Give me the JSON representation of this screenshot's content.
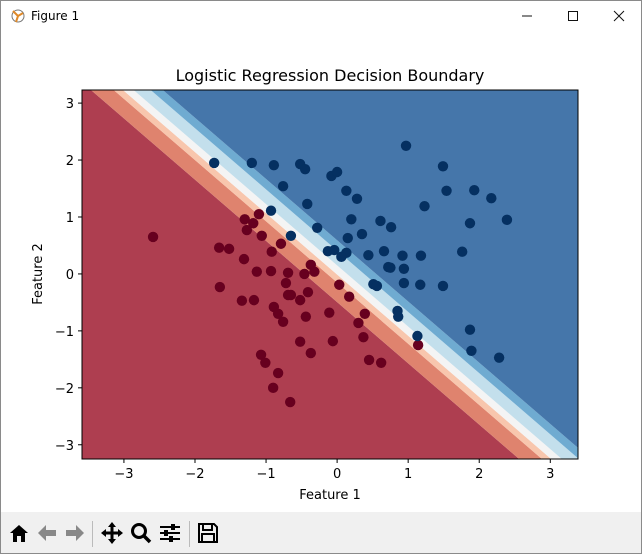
{
  "window": {
    "title": "Figure 1",
    "minimize_icon": "minimize-icon",
    "maximize_icon": "maximize-icon",
    "close_icon": "close-icon"
  },
  "toolbar": {
    "items": [
      "home-icon",
      "back-arrow-icon",
      "forward-arrow-icon",
      "pan-icon",
      "zoom-icon",
      "configure-subplots-icon",
      "save-icon"
    ]
  },
  "chart_data": {
    "type": "scatter",
    "title": "Logistic Regression Decision Boundary",
    "xlabel": "Feature 1",
    "ylabel": "Feature 2",
    "xlim": [
      -3.59,
      3.39
    ],
    "ylim": [
      -3.25,
      3.23
    ],
    "xticks": [
      "−3",
      "−2",
      "−1",
      "0",
      "1",
      "2",
      "3"
    ],
    "yticks": [
      "3",
      "2",
      "1",
      "0",
      "−1",
      "−2",
      "−3"
    ],
    "grid": false,
    "background": "filled contour of class probability (RdBu colormap)",
    "contour_colors": [
      "#ae3e50",
      "#df836e",
      "#f8c6ad",
      "#f4f4f4",
      "#c3dfec",
      "#6fabd1",
      "#4576aa"
    ],
    "series": [
      {
        "class": 0,
        "color": "#67001f",
        "points": [
          [
            -2.59,
            0.65
          ],
          [
            -1.1,
            1.05
          ],
          [
            -1.3,
            0.96
          ],
          [
            -1.18,
            0.89
          ],
          [
            -1.27,
            0.77
          ],
          [
            -1.06,
            0.67
          ],
          [
            -0.79,
            0.53
          ],
          [
            -1.66,
            0.46
          ],
          [
            -1.52,
            0.44
          ],
          [
            -1.31,
            0.26
          ],
          [
            -0.92,
            0.39
          ],
          [
            -1.13,
            0.04
          ],
          [
            -0.93,
            0.05
          ],
          [
            -0.69,
            0.02
          ],
          [
            -0.37,
            0.16
          ],
          [
            -0.32,
            0.04
          ],
          [
            -0.46,
            0.0
          ],
          [
            -0.72,
            -0.16
          ],
          [
            0.03,
            -0.19
          ],
          [
            0.17,
            -0.4
          ],
          [
            0.3,
            -0.86
          ],
          [
            -1.65,
            -0.23
          ],
          [
            -1.34,
            -0.47
          ],
          [
            -1.17,
            -0.46
          ],
          [
            -0.69,
            -0.37
          ],
          [
            -0.65,
            -0.37
          ],
          [
            -0.52,
            -0.46
          ],
          [
            -0.41,
            -0.32
          ],
          [
            -0.89,
            -0.58
          ],
          [
            -0.83,
            -0.7
          ],
          [
            -0.76,
            -0.84
          ],
          [
            -0.44,
            -0.75
          ],
          [
            -0.11,
            -0.68
          ],
          [
            0.39,
            -0.7
          ],
          [
            -0.52,
            -1.19
          ],
          [
            -0.37,
            -1.39
          ],
          [
            -0.06,
            -1.18
          ],
          [
            0.37,
            -1.11
          ],
          [
            -1.07,
            -1.42
          ],
          [
            -1.01,
            -1.56
          ],
          [
            -0.83,
            -1.74
          ],
          [
            -0.9,
            -2.0
          ],
          [
            -0.66,
            -2.25
          ],
          [
            0.45,
            -1.51
          ],
          [
            0.62,
            -1.56
          ],
          [
            1.14,
            -1.25
          ]
        ]
      },
      {
        "class": 1,
        "color": "#053061",
        "points": [
          [
            -1.73,
            1.95
          ],
          [
            -1.2,
            1.95
          ],
          [
            -0.89,
            1.91
          ],
          [
            -0.52,
            1.93
          ],
          [
            -0.45,
            1.84
          ],
          [
            -0.08,
            1.72
          ],
          [
            0.0,
            1.79
          ],
          [
            -0.76,
            1.54
          ],
          [
            -0.42,
            1.23
          ],
          [
            0.13,
            1.46
          ],
          [
            0.28,
            1.32
          ],
          [
            0.97,
            2.25
          ],
          [
            1.49,
            1.89
          ],
          [
            1.54,
            1.46
          ],
          [
            1.93,
            1.47
          ],
          [
            2.17,
            1.33
          ],
          [
            1.23,
            1.19
          ],
          [
            2.39,
            0.95
          ],
          [
            1.87,
            0.89
          ],
          [
            1.76,
            0.39
          ],
          [
            1.49,
            -0.21
          ],
          [
            1.87,
            -0.98
          ],
          [
            1.89,
            -1.35
          ],
          [
            2.28,
            -1.47
          ],
          [
            1.13,
            -1.09
          ],
          [
            0.85,
            -0.65
          ],
          [
            0.86,
            -0.75
          ],
          [
            0.51,
            -0.18
          ],
          [
            0.56,
            -0.21
          ],
          [
            0.94,
            -0.16
          ],
          [
            1.17,
            -0.19
          ],
          [
            0.92,
            0.32
          ],
          [
            1.18,
            0.32
          ],
          [
            0.94,
            0.09
          ],
          [
            0.72,
            0.12
          ],
          [
            0.75,
            0.11
          ],
          [
            0.66,
            0.4
          ],
          [
            0.44,
            0.33
          ],
          [
            0.13,
            0.37
          ],
          [
            0.06,
            0.3
          ],
          [
            -0.13,
            0.4
          ],
          [
            -0.04,
            0.42
          ],
          [
            0.15,
            0.63
          ],
          [
            0.35,
            0.7
          ],
          [
            -0.28,
            0.81
          ],
          [
            0.2,
            0.96
          ],
          [
            0.61,
            0.93
          ],
          [
            0.76,
            0.82
          ],
          [
            -0.93,
            1.11
          ],
          [
            -0.65,
            0.67
          ]
        ]
      }
    ]
  }
}
